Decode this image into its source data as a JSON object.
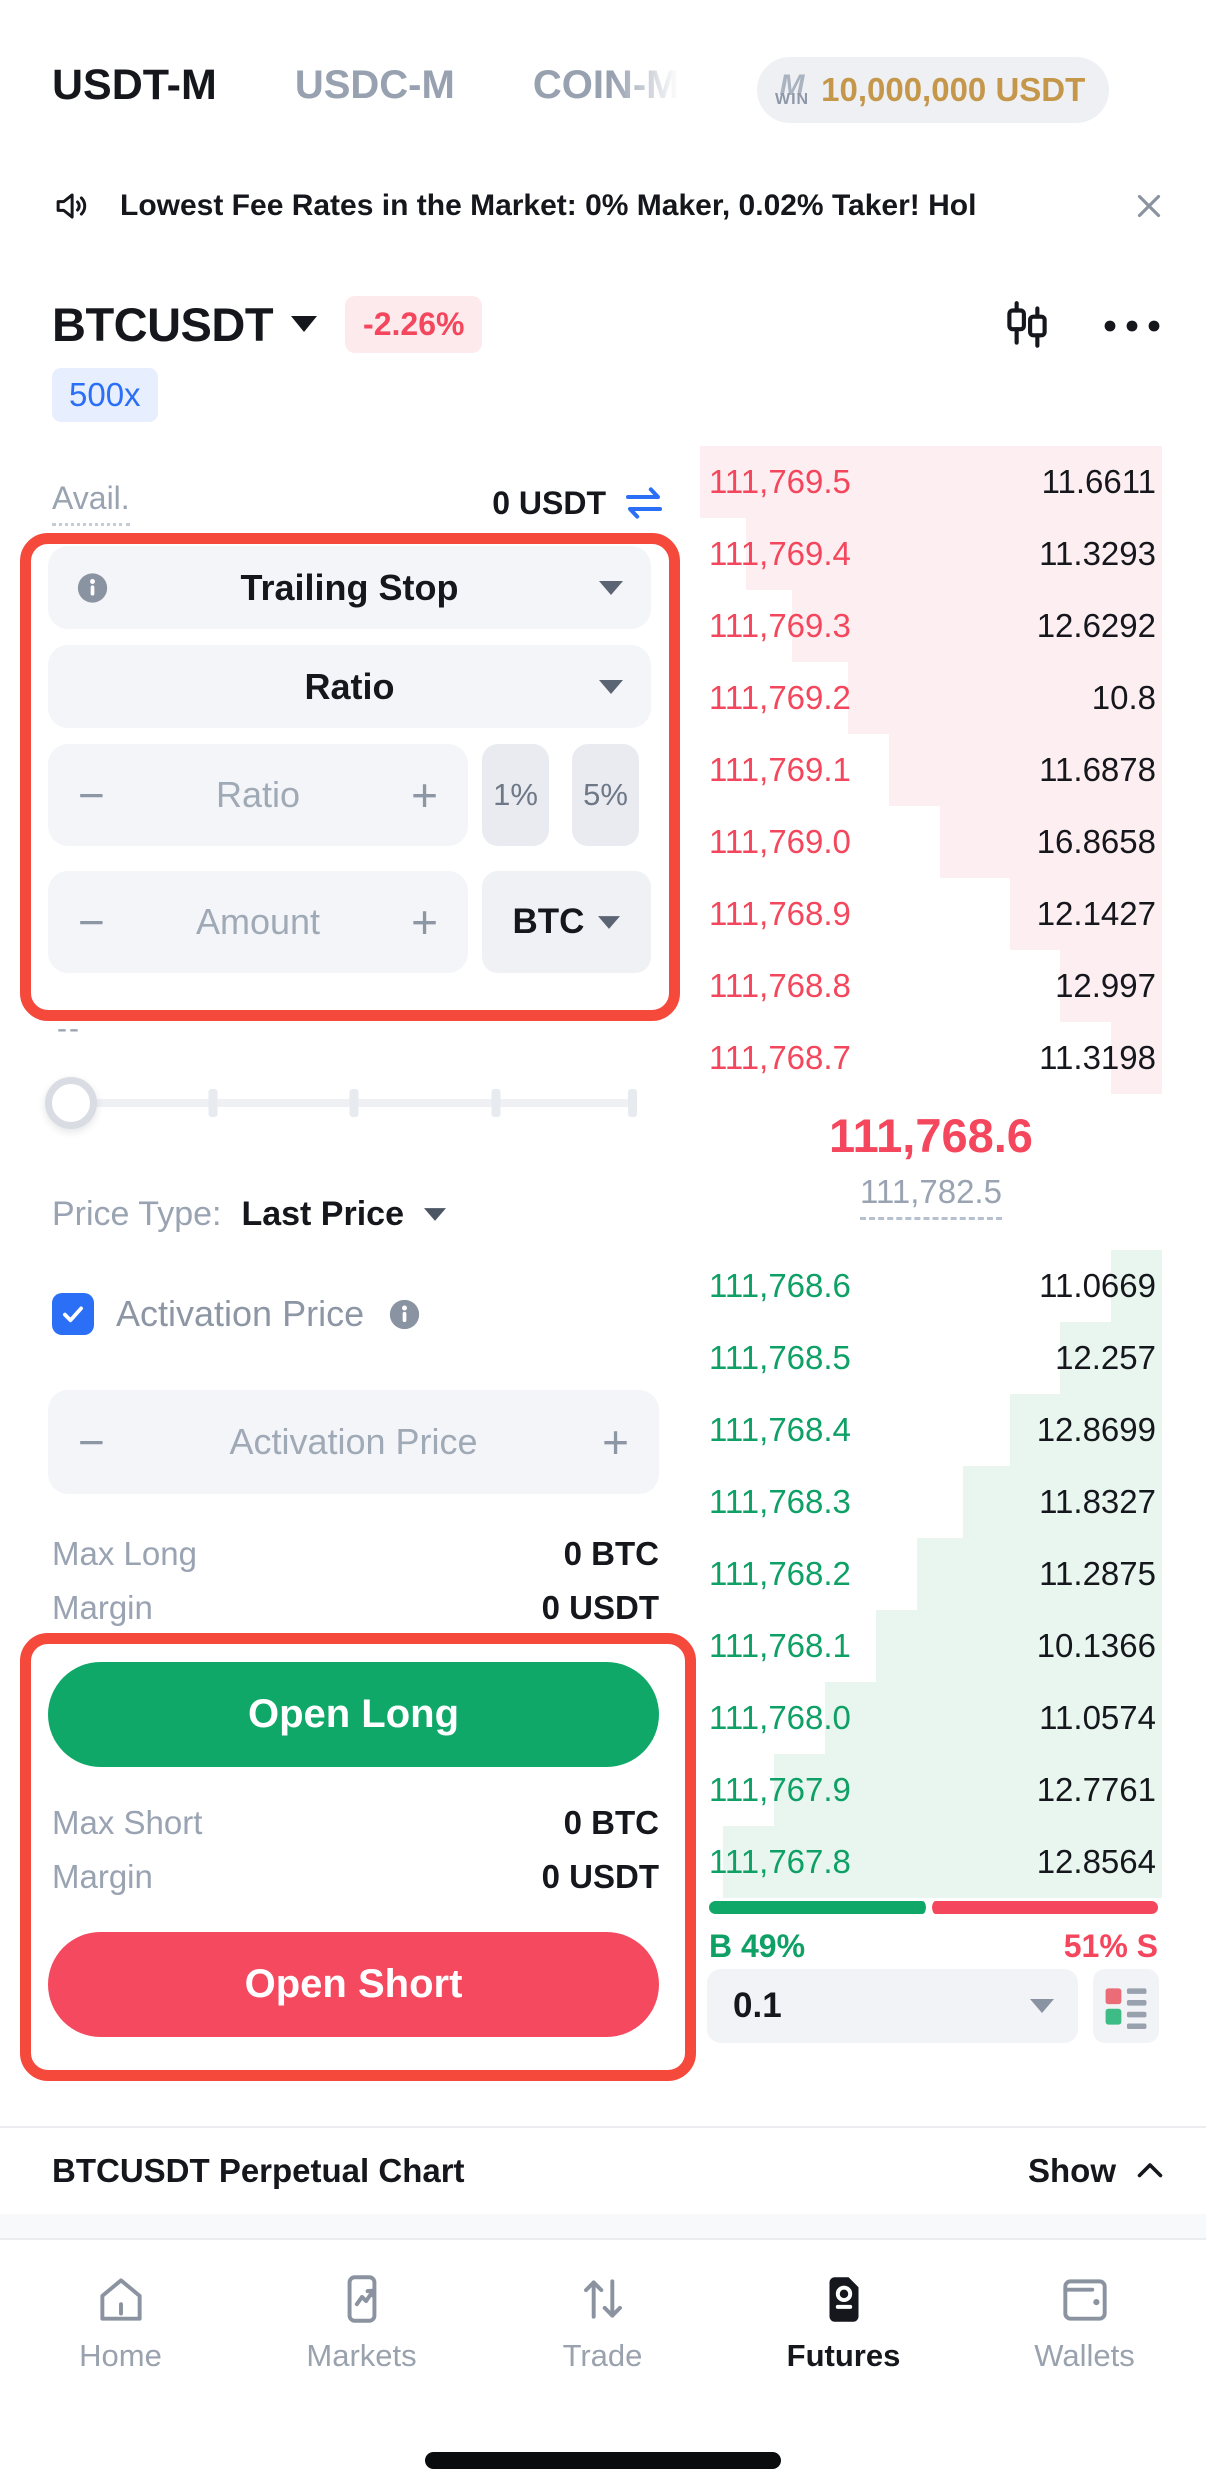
{
  "top_tabs": {
    "items": [
      {
        "label": "USDT-M",
        "active": true
      },
      {
        "label": "USDC-M",
        "active": false
      },
      {
        "label": "COIN-M",
        "active": false
      }
    ]
  },
  "bonus_badge": {
    "logo_top": "M",
    "logo_bottom": "WIN",
    "amount": "10,000,000 USDT"
  },
  "announcement": {
    "text": "Lowest Fee Rates in the Market: 0% Maker, 0.02% Taker! Hol"
  },
  "symbol": {
    "name": "BTCUSDT",
    "change": "-2.26%",
    "leverage": "500x"
  },
  "available": {
    "label": "Avail.",
    "value": "0 USDT"
  },
  "order_form": {
    "order_type": "Trailing Stop",
    "variance_type": "Ratio",
    "ratio_placeholder": "Ratio",
    "quick_ratios": [
      "1%",
      "5%"
    ],
    "amount_placeholder": "Amount",
    "amount_unit": "BTC",
    "minus": "−",
    "plus": "+",
    "leverage_hint": "--"
  },
  "price_type": {
    "label": "Price Type:",
    "value": "Last Price"
  },
  "activation": {
    "label": "Activation Price",
    "checked": true,
    "placeholder": "Activation Price"
  },
  "long": {
    "max_label": "Max Long",
    "max_value": "0 BTC",
    "margin_label": "Margin",
    "margin_value": "0 USDT",
    "button_label": "Open Long"
  },
  "short": {
    "max_label": "Max Short",
    "max_value": "0 BTC",
    "margin_label": "Margin",
    "margin_value": "0 USDT",
    "button_label": "Open Short"
  },
  "order_book": {
    "asks": [
      {
        "price": "111,769.5",
        "amount": "11.6611",
        "depth": 1.0
      },
      {
        "price": "111,769.4",
        "amount": "11.3293",
        "depth": 0.9
      },
      {
        "price": "111,769.3",
        "amount": "12.6292",
        "depth": 0.8
      },
      {
        "price": "111,769.2",
        "amount": "10.8",
        "depth": 0.68
      },
      {
        "price": "111,769.1",
        "amount": "11.6878",
        "depth": 0.59
      },
      {
        "price": "111,769.0",
        "amount": "16.8658",
        "depth": 0.48
      },
      {
        "price": "111,768.9",
        "amount": "12.1427",
        "depth": 0.33
      },
      {
        "price": "111,768.8",
        "amount": "12.997",
        "depth": 0.22
      },
      {
        "price": "111,768.7",
        "amount": "11.3198",
        "depth": 0.11
      }
    ],
    "bids": [
      {
        "price": "111,768.6",
        "amount": "11.0669",
        "depth": 0.11
      },
      {
        "price": "111,768.5",
        "amount": "12.257",
        "depth": 0.22
      },
      {
        "price": "111,768.4",
        "amount": "12.8699",
        "depth": 0.33
      },
      {
        "price": "111,768.3",
        "amount": "11.8327",
        "depth": 0.43
      },
      {
        "price": "111,768.2",
        "amount": "11.2875",
        "depth": 0.53
      },
      {
        "price": "111,768.1",
        "amount": "10.1366",
        "depth": 0.62
      },
      {
        "price": "111,768.0",
        "amount": "11.0574",
        "depth": 0.73
      },
      {
        "price": "111,767.9",
        "amount": "12.7761",
        "depth": 0.84
      },
      {
        "price": "111,767.8",
        "amount": "12.8564",
        "depth": 0.95
      }
    ],
    "last_price": "111,768.6",
    "index_price": "111,782.5",
    "buy_ratio_label": "B 49%",
    "sell_ratio_label": "51% S",
    "buy_pct": 49,
    "sell_pct": 51,
    "tick_size": "0.1"
  },
  "chart_section": {
    "title": "BTCUSDT Perpetual Chart",
    "toggle_label": "Show"
  },
  "bottom_nav": {
    "items": [
      {
        "label": "Home",
        "active": false
      },
      {
        "label": "Markets",
        "active": false
      },
      {
        "label": "Trade",
        "active": false
      },
      {
        "label": "Futures",
        "active": true
      },
      {
        "label": "Wallets",
        "active": false
      }
    ]
  },
  "colors": {
    "up": "#0fa066",
    "down": "#f4465c",
    "accent_blue": "#2a6ff6",
    "annotation": "#f5493c",
    "gold": "#c5974a"
  }
}
